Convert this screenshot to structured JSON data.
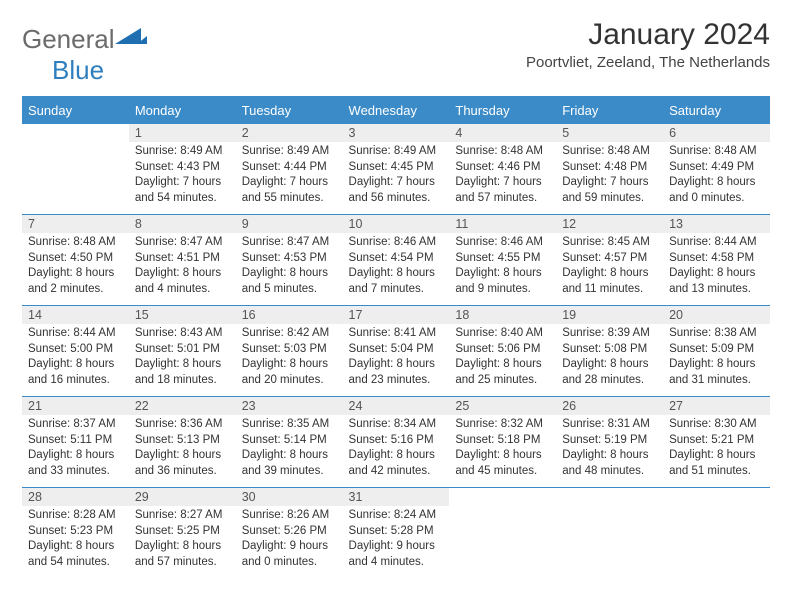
{
  "logo": {
    "text_general": "General",
    "text_blue": "Blue",
    "color_gray": "#6b6b6b",
    "color_blue": "#2f7fbf"
  },
  "header": {
    "title": "January 2024",
    "location": "Poortvliet, Zeeland, The Netherlands",
    "title_fontsize": 30,
    "location_fontsize": 15
  },
  "styling": {
    "header_bg": "#3b8bc9",
    "header_text": "#ffffff",
    "daynum_bg": "#eeeeee",
    "body_text": "#333333",
    "cell_fontsize": 11.5,
    "daynum_fontsize": 12.5,
    "rule_color": "#3b8bc9"
  },
  "weekdays": [
    "Sunday",
    "Monday",
    "Tuesday",
    "Wednesday",
    "Thursday",
    "Friday",
    "Saturday"
  ],
  "weeks": [
    {
      "days": [
        null,
        {
          "n": "1",
          "sr": "Sunrise: 8:49 AM",
          "ss": "Sunset: 4:43 PM",
          "dl": "Daylight: 7 hours and 54 minutes."
        },
        {
          "n": "2",
          "sr": "Sunrise: 8:49 AM",
          "ss": "Sunset: 4:44 PM",
          "dl": "Daylight: 7 hours and 55 minutes."
        },
        {
          "n": "3",
          "sr": "Sunrise: 8:49 AM",
          "ss": "Sunset: 4:45 PM",
          "dl": "Daylight: 7 hours and 56 minutes."
        },
        {
          "n": "4",
          "sr": "Sunrise: 8:48 AM",
          "ss": "Sunset: 4:46 PM",
          "dl": "Daylight: 7 hours and 57 minutes."
        },
        {
          "n": "5",
          "sr": "Sunrise: 8:48 AM",
          "ss": "Sunset: 4:48 PM",
          "dl": "Daylight: 7 hours and 59 minutes."
        },
        {
          "n": "6",
          "sr": "Sunrise: 8:48 AM",
          "ss": "Sunset: 4:49 PM",
          "dl": "Daylight: 8 hours and 0 minutes."
        }
      ]
    },
    {
      "days": [
        {
          "n": "7",
          "sr": "Sunrise: 8:48 AM",
          "ss": "Sunset: 4:50 PM",
          "dl": "Daylight: 8 hours and 2 minutes."
        },
        {
          "n": "8",
          "sr": "Sunrise: 8:47 AM",
          "ss": "Sunset: 4:51 PM",
          "dl": "Daylight: 8 hours and 4 minutes."
        },
        {
          "n": "9",
          "sr": "Sunrise: 8:47 AM",
          "ss": "Sunset: 4:53 PM",
          "dl": "Daylight: 8 hours and 5 minutes."
        },
        {
          "n": "10",
          "sr": "Sunrise: 8:46 AM",
          "ss": "Sunset: 4:54 PM",
          "dl": "Daylight: 8 hours and 7 minutes."
        },
        {
          "n": "11",
          "sr": "Sunrise: 8:46 AM",
          "ss": "Sunset: 4:55 PM",
          "dl": "Daylight: 8 hours and 9 minutes."
        },
        {
          "n": "12",
          "sr": "Sunrise: 8:45 AM",
          "ss": "Sunset: 4:57 PM",
          "dl": "Daylight: 8 hours and 11 minutes."
        },
        {
          "n": "13",
          "sr": "Sunrise: 8:44 AM",
          "ss": "Sunset: 4:58 PM",
          "dl": "Daylight: 8 hours and 13 minutes."
        }
      ]
    },
    {
      "days": [
        {
          "n": "14",
          "sr": "Sunrise: 8:44 AM",
          "ss": "Sunset: 5:00 PM",
          "dl": "Daylight: 8 hours and 16 minutes."
        },
        {
          "n": "15",
          "sr": "Sunrise: 8:43 AM",
          "ss": "Sunset: 5:01 PM",
          "dl": "Daylight: 8 hours and 18 minutes."
        },
        {
          "n": "16",
          "sr": "Sunrise: 8:42 AM",
          "ss": "Sunset: 5:03 PM",
          "dl": "Daylight: 8 hours and 20 minutes."
        },
        {
          "n": "17",
          "sr": "Sunrise: 8:41 AM",
          "ss": "Sunset: 5:04 PM",
          "dl": "Daylight: 8 hours and 23 minutes."
        },
        {
          "n": "18",
          "sr": "Sunrise: 8:40 AM",
          "ss": "Sunset: 5:06 PM",
          "dl": "Daylight: 8 hours and 25 minutes."
        },
        {
          "n": "19",
          "sr": "Sunrise: 8:39 AM",
          "ss": "Sunset: 5:08 PM",
          "dl": "Daylight: 8 hours and 28 minutes."
        },
        {
          "n": "20",
          "sr": "Sunrise: 8:38 AM",
          "ss": "Sunset: 5:09 PM",
          "dl": "Daylight: 8 hours and 31 minutes."
        }
      ]
    },
    {
      "days": [
        {
          "n": "21",
          "sr": "Sunrise: 8:37 AM",
          "ss": "Sunset: 5:11 PM",
          "dl": "Daylight: 8 hours and 33 minutes."
        },
        {
          "n": "22",
          "sr": "Sunrise: 8:36 AM",
          "ss": "Sunset: 5:13 PM",
          "dl": "Daylight: 8 hours and 36 minutes."
        },
        {
          "n": "23",
          "sr": "Sunrise: 8:35 AM",
          "ss": "Sunset: 5:14 PM",
          "dl": "Daylight: 8 hours and 39 minutes."
        },
        {
          "n": "24",
          "sr": "Sunrise: 8:34 AM",
          "ss": "Sunset: 5:16 PM",
          "dl": "Daylight: 8 hours and 42 minutes."
        },
        {
          "n": "25",
          "sr": "Sunrise: 8:32 AM",
          "ss": "Sunset: 5:18 PM",
          "dl": "Daylight: 8 hours and 45 minutes."
        },
        {
          "n": "26",
          "sr": "Sunrise: 8:31 AM",
          "ss": "Sunset: 5:19 PM",
          "dl": "Daylight: 8 hours and 48 minutes."
        },
        {
          "n": "27",
          "sr": "Sunrise: 8:30 AM",
          "ss": "Sunset: 5:21 PM",
          "dl": "Daylight: 8 hours and 51 minutes."
        }
      ]
    },
    {
      "days": [
        {
          "n": "28",
          "sr": "Sunrise: 8:28 AM",
          "ss": "Sunset: 5:23 PM",
          "dl": "Daylight: 8 hours and 54 minutes."
        },
        {
          "n": "29",
          "sr": "Sunrise: 8:27 AM",
          "ss": "Sunset: 5:25 PM",
          "dl": "Daylight: 8 hours and 57 minutes."
        },
        {
          "n": "30",
          "sr": "Sunrise: 8:26 AM",
          "ss": "Sunset: 5:26 PM",
          "dl": "Daylight: 9 hours and 0 minutes."
        },
        {
          "n": "31",
          "sr": "Sunrise: 8:24 AM",
          "ss": "Sunset: 5:28 PM",
          "dl": "Daylight: 9 hours and 4 minutes."
        },
        null,
        null,
        null
      ]
    }
  ]
}
